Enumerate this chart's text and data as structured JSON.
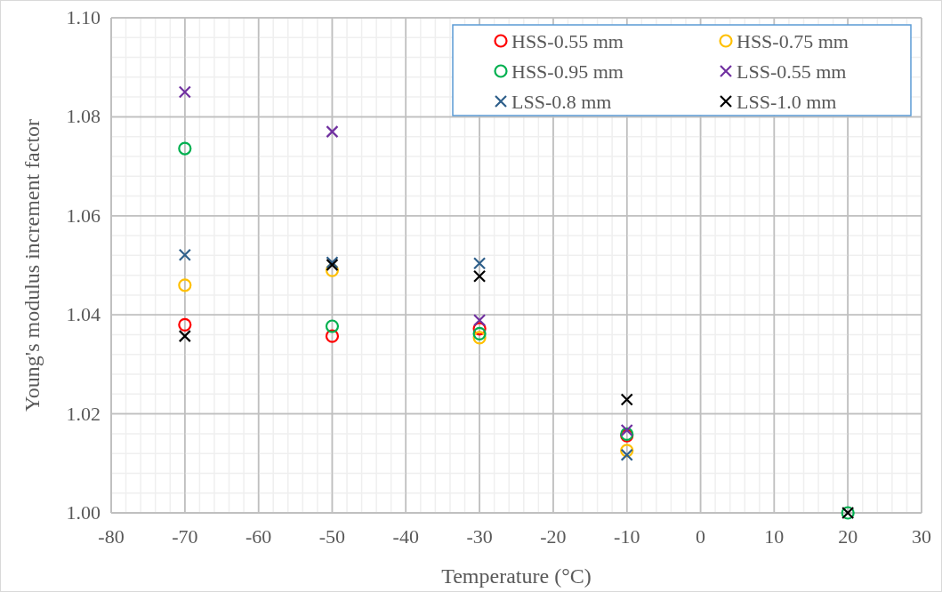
{
  "chart_data": {
    "type": "scatter",
    "xlabel": "Temperature (°C)",
    "ylabel": "Young's modulus increment factor",
    "x": [
      -70,
      -50,
      -30,
      -10,
      20
    ],
    "xlim": [
      -80,
      30
    ],
    "ylim": [
      1.0,
      1.1
    ],
    "xticks": [
      -80,
      {
        "value": -78,
        "label": null
      },
      {
        "value": -76,
        "label": null
      },
      {
        "value": -74,
        "label": null
      },
      {
        "value": -72,
        "label": null
      },
      -70,
      {
        "value": -68,
        "label": null
      },
      {
        "value": -66,
        "label": null
      },
      {
        "value": -64,
        "label": null
      },
      {
        "value": -62,
        "label": null
      },
      -60,
      {
        "value": -58,
        "label": null
      },
      {
        "value": -56,
        "label": null
      },
      {
        "value": -54,
        "label": null
      },
      {
        "value": -52,
        "label": null
      },
      -50,
      {
        "value": -48,
        "label": null
      },
      {
        "value": -46,
        "label": null
      },
      {
        "value": -44,
        "label": null
      },
      {
        "value": -42,
        "label": null
      },
      -40,
      {
        "value": -38,
        "label": null
      },
      {
        "value": -36,
        "label": null
      },
      {
        "value": -34,
        "label": null
      },
      {
        "value": -32,
        "label": null
      },
      -30,
      {
        "value": -28,
        "label": null
      },
      {
        "value": -26,
        "label": null
      },
      {
        "value": -24,
        "label": null
      },
      {
        "value": -22,
        "label": null
      },
      -20,
      {
        "value": -18,
        "label": null
      },
      {
        "value": -16,
        "label": null
      },
      {
        "value": -14,
        "label": null
      },
      {
        "value": -12,
        "label": null
      },
      -10,
      {
        "value": -8,
        "label": null
      },
      {
        "value": -6,
        "label": null
      },
      {
        "value": -4,
        "label": null
      },
      {
        "value": -2,
        "label": null
      },
      0,
      {
        "value": 2,
        "label": null
      },
      {
        "value": 4,
        "label": null
      },
      {
        "value": 6,
        "label": null
      },
      {
        "value": 8,
        "label": null
      },
      10,
      {
        "value": 12,
        "label": null
      },
      {
        "value": 14,
        "label": null
      },
      {
        "value": 16,
        "label": null
      },
      {
        "value": 18,
        "label": null
      },
      20,
      {
        "value": 22,
        "label": null
      },
      {
        "value": 24,
        "label": null
      },
      {
        "value": 26,
        "label": null
      },
      {
        "value": 28,
        "label": null
      },
      30
    ],
    "yticks": [
      {
        "value": 1.0,
        "label": "1.00"
      },
      {
        "value": 1.004,
        "label": null
      },
      {
        "value": 1.008,
        "label": null
      },
      {
        "value": 1.012,
        "label": null
      },
      {
        "value": 1.016,
        "label": null
      },
      1.02,
      {
        "value": 1.024,
        "label": null
      },
      {
        "value": 1.028,
        "label": null
      },
      {
        "value": 1.032,
        "label": null
      },
      {
        "value": 1.036,
        "label": null
      },
      1.04,
      {
        "value": 1.044,
        "label": null
      },
      {
        "value": 1.048,
        "label": null
      },
      {
        "value": 1.052,
        "label": null
      },
      {
        "value": 1.056,
        "label": null
      },
      1.06,
      {
        "value": 1.064,
        "label": null
      },
      {
        "value": 1.068,
        "label": null
      },
      {
        "value": 1.072,
        "label": null
      },
      {
        "value": 1.076,
        "label": null
      },
      1.08,
      {
        "value": 1.084,
        "label": null
      },
      {
        "value": 1.088,
        "label": null
      },
      {
        "value": 1.092,
        "label": null
      },
      {
        "value": 1.096,
        "label": null
      },
      {
        "value": 1.1,
        "label": "1.10"
      }
    ],
    "grid": true,
    "legend": "top right",
    "series": [
      {
        "name": "HSS-0.55 mm",
        "color": "#ff0000",
        "marker": "circle",
        "values": [
          1.038,
          1.0357,
          1.0372,
          1.0156,
          null
        ]
      },
      {
        "name": "HSS-0.75 mm",
        "color": "#ffc000",
        "marker": "circle",
        "values": [
          1.046,
          1.049,
          1.0354,
          1.0126,
          null
        ]
      },
      {
        "name": "HSS-0.95 mm",
        "color": "#00b050",
        "marker": "circle",
        "values": [
          1.0736,
          1.0377,
          1.0362,
          1.0159,
          1.0
        ]
      },
      {
        "name": "LSS-0.55 mm",
        "color": "#7030a0",
        "marker": "cross",
        "values": [
          1.085,
          1.077,
          1.0389,
          1.0167,
          null
        ]
      },
      {
        "name": "LSS-0.8 mm",
        "color": "#2e5f8a",
        "marker": "cross",
        "values": [
          1.0521,
          1.0506,
          1.0504,
          1.0117,
          null
        ]
      },
      {
        "name": "LSS-1.0 mm",
        "color": "#000000",
        "marker": "cross",
        "values": [
          1.0357,
          1.0501,
          1.0478,
          1.0229,
          1.0
        ]
      }
    ]
  }
}
